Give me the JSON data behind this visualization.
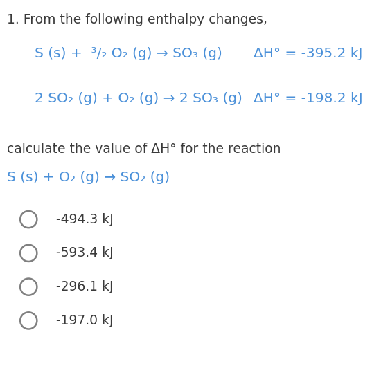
{
  "background_color": "#ffffff",
  "text_color_blue": "#4a90d9",
  "text_color_dark": "#3a3a3a",
  "text_color_gray": "#808080",
  "question_prefix": "1. From the following enthalpy changes,",
  "reaction1_left": "S (s) +  ³/₂ O₂ (g) → SO₃ (g)",
  "reaction1_right": "ΔH° = -395.2 kJ",
  "reaction2_left": "2 SO₂ (g) + O₂ (g) → 2 SO₃ (g)",
  "reaction2_right": "ΔH° = -198.2 kJ",
  "calculate_text": "calculate the value of ΔH° for the reaction",
  "target_reaction": "S (s) + O₂ (g) → SO₂ (g)",
  "options": [
    "-494.3 kJ",
    "-593.4 kJ",
    "-296.1 kJ",
    "-197.0 kJ"
  ],
  "question_fontsize": 13.5,
  "reaction_fontsize": 14.5,
  "option_fontsize": 13.5,
  "circle_color": "#909090",
  "circle_linewidth": 1.8
}
